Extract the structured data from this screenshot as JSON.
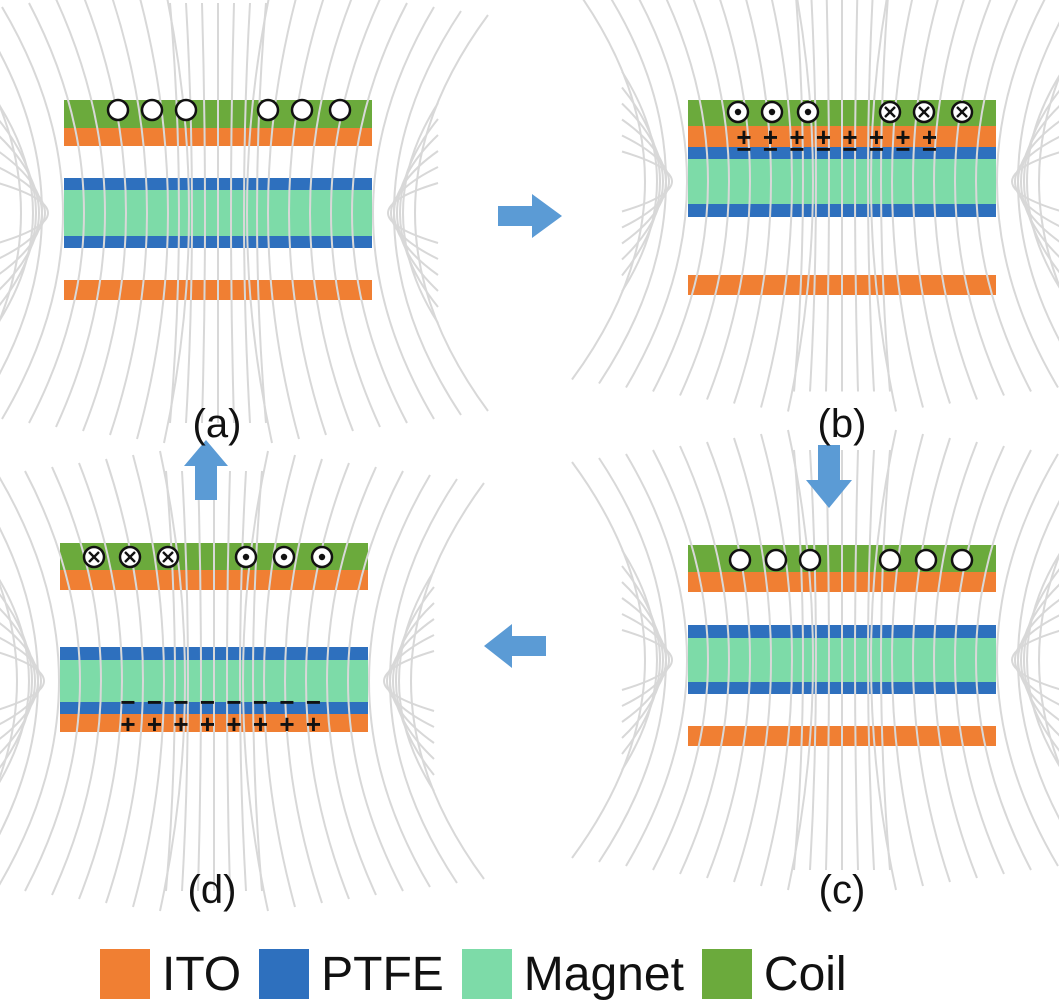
{
  "colors": {
    "ito": "#F07F33",
    "ptfe": "#2E70BE",
    "magnet": "#7DDBA8",
    "coil": "#6BAA3C",
    "field_line": "#D8D8D8",
    "arrow": "#5B9BD5"
  },
  "panels": [
    {
      "label": "(a)",
      "coil_currents": [
        "none",
        "none",
        "none",
        "none",
        "none",
        "none"
      ],
      "charges": "none"
    },
    {
      "label": "(b)",
      "coil_currents": [
        "out",
        "out",
        "out",
        "in",
        "in",
        "in"
      ],
      "charges": "top-ito"
    },
    {
      "label": "(c)",
      "coil_currents": [
        "none",
        "none",
        "none",
        "none",
        "none",
        "none"
      ],
      "charges": "none"
    },
    {
      "label": "(d)",
      "coil_currents": [
        "in",
        "in",
        "in",
        "out",
        "out",
        "out"
      ],
      "charges": "bottom-ito"
    }
  ],
  "charge_signs": {
    "positive": "+",
    "negative": "−"
  },
  "legend": [
    {
      "label": "ITO",
      "color": "#F07F33"
    },
    {
      "label": "PTFE",
      "color": "#2E70BE"
    },
    {
      "label": "Magnet",
      "color": "#7DDBA8"
    },
    {
      "label": "Coil",
      "color": "#6BAA3C"
    }
  ],
  "arrows": [
    {
      "from": "(a)",
      "to": "(b)",
      "direction": "right"
    },
    {
      "from": "(b)",
      "to": "(c)",
      "direction": "down"
    },
    {
      "from": "(c)",
      "to": "(d)",
      "direction": "left"
    },
    {
      "from": "(d)",
      "to": "(a)",
      "direction": "up"
    }
  ]
}
